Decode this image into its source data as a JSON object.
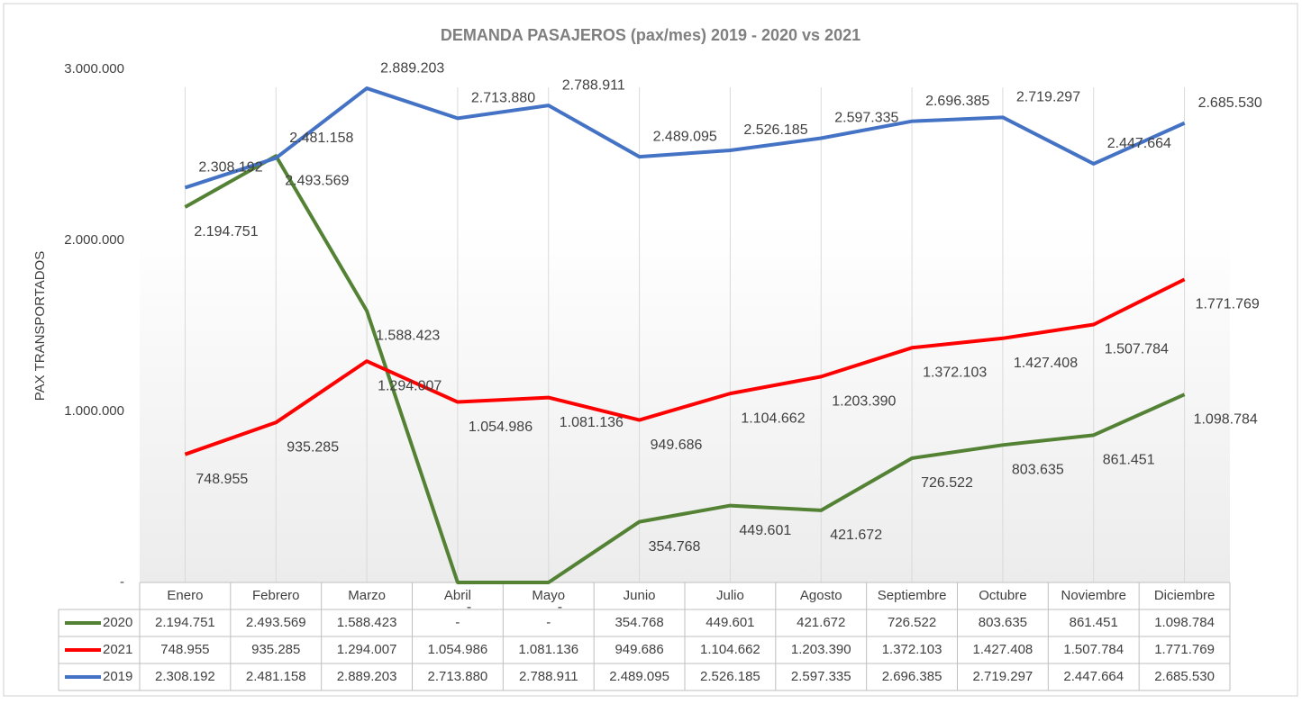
{
  "chart_data": {
    "type": "line",
    "title": "DEMANDA PASAJEROS (pax/mes)  2019 - 2020 vs 2021",
    "y_label": "PAX TRANSPORTADOS",
    "categories": [
      "Enero",
      "Febrero",
      "Marzo",
      "Abril",
      "Mayo",
      "Junio",
      "Julio",
      "Agosto",
      "Septiembre",
      "Octubre",
      "Noviembre",
      "Diciembre"
    ],
    "series": [
      {
        "name": "2020",
        "color": "#548235",
        "values": [
          2194751,
          2493569,
          1588423,
          0,
          0,
          354768,
          449601,
          421672,
          726522,
          803635,
          861451,
          1098784
        ],
        "value_labels": [
          "2.194.751",
          "2.493.569",
          "1.588.423",
          "-",
          "-",
          "354.768",
          "449.601",
          "421.672",
          "726.522",
          "803.635",
          "861.451",
          "1.098.784"
        ]
      },
      {
        "name": "2021",
        "color": "#ff0000",
        "values": [
          748955,
          935285,
          1294007,
          1054986,
          1081136,
          949686,
          1104662,
          1203390,
          1372103,
          1427408,
          1507784,
          1771769
        ],
        "value_labels": [
          "748.955",
          "935.285",
          "1.294.007",
          "1.054.986",
          "1.081.136",
          "949.686",
          "1.104.662",
          "1.203.390",
          "1.372.103",
          "1.427.408",
          "1.507.784",
          "1.771.769"
        ]
      },
      {
        "name": "2019",
        "color": "#4472c4",
        "values": [
          2308192,
          2481158,
          2889203,
          2713880,
          2788911,
          2489095,
          2526185,
          2597335,
          2696385,
          2719297,
          2447664,
          2685530
        ],
        "value_labels": [
          "2.308.192",
          "2.481.158",
          "2.889.203",
          "2.713.880",
          "2.788.911",
          "2.489.095",
          "2.526.185",
          "2.597.335",
          "2.696.385",
          "2.719.297",
          "2.447.664",
          "2.685.530"
        ]
      }
    ],
    "ylim": [
      0,
      3000000
    ],
    "yticks": [
      {
        "value": 0,
        "label": "-"
      },
      {
        "value": 1000000,
        "label": "1.000.000"
      },
      {
        "value": 2000000,
        "label": "2.000.000"
      },
      {
        "value": 3000000,
        "label": "3.000.000"
      }
    ],
    "grid": false
  }
}
